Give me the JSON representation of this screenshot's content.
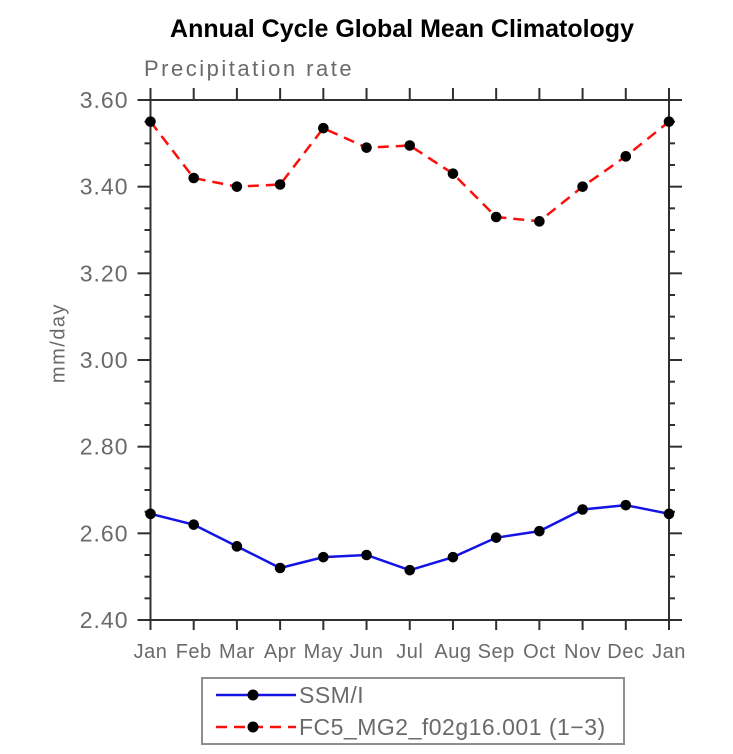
{
  "chart_data": {
    "type": "line",
    "title": "Annual Cycle Global Mean Climatology",
    "subtitle": "Precipitation rate",
    "xlabel": "",
    "ylabel": "mm/day",
    "x_tick_labels": [
      "Jan",
      "Feb",
      "Mar",
      "Apr",
      "May",
      "Jun",
      "Jul",
      "Aug",
      "Sep",
      "Oct",
      "Nov",
      "Dec",
      "Jan"
    ],
    "ylim": [
      2.4,
      3.6
    ],
    "y_major_step": 0.2,
    "y_minor_step": 0.05,
    "y_tick_labels": [
      "2.40",
      "2.60",
      "2.80",
      "3.00",
      "3.20",
      "3.40",
      "3.60"
    ],
    "grid": false,
    "legend_position": "bottom",
    "frame_color": "#303030",
    "tick_label_color": "#6a6a6a",
    "marker": "filled-circle",
    "marker_color": "#000000",
    "series": [
      {
        "name": "SSM/I",
        "color": "#1414e6",
        "style": "solid",
        "values": [
          2.645,
          2.62,
          2.57,
          2.52,
          2.545,
          2.55,
          2.515,
          2.545,
          2.59,
          2.605,
          2.655,
          2.665,
          2.645
        ]
      },
      {
        "name": "FC5_MG2_f02g16.001 (1−3)",
        "color": "#fb0f0b",
        "style": "dashed",
        "values": [
          3.55,
          3.42,
          3.4,
          3.405,
          3.535,
          3.49,
          3.495,
          3.43,
          3.33,
          3.32,
          3.4,
          3.47,
          3.55
        ]
      }
    ]
  }
}
